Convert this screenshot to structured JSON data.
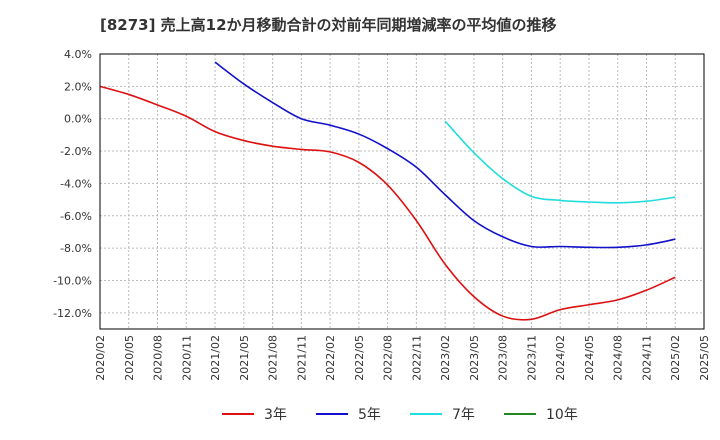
{
  "chart_data": {
    "type": "line",
    "title": "[8273]  売上高12か月移動合計の対前年同期増減率の平均値の推移",
    "xlabel": "",
    "ylabel": "",
    "ylim": [
      -13.0,
      4.0
    ],
    "yticks": [
      4.0,
      2.0,
      0.0,
      -2.0,
      -4.0,
      -6.0,
      -8.0,
      -10.0,
      -12.0
    ],
    "ytick_labels": [
      "4.0%",
      "2.0%",
      "0.0%",
      "-2.0%",
      "-4.0%",
      "-6.0%",
      "-8.0%",
      "-10.0%",
      "-12.0%"
    ],
    "x_categories": [
      "2020/02",
      "2020/05",
      "2020/08",
      "2020/11",
      "2021/02",
      "2021/05",
      "2021/08",
      "2021/11",
      "2022/02",
      "2022/05",
      "2022/08",
      "2022/11",
      "2023/02",
      "2023/05",
      "2023/08",
      "2023/11",
      "2024/02",
      "2024/05",
      "2024/08",
      "2024/11",
      "2025/02",
      "2025/05"
    ],
    "grid": true,
    "legend_position": "bottom",
    "series": [
      {
        "name": "3年",
        "color": "#dd1111",
        "values": [
          2.0,
          1.5,
          0.85,
          0.15,
          -0.8,
          -1.35,
          -1.7,
          -1.9,
          -2.05,
          -2.7,
          -4.1,
          -6.3,
          -9.0,
          -11.0,
          -12.2,
          -12.4,
          -11.8,
          -11.5,
          -11.2,
          -10.6,
          -9.8,
          null
        ]
      },
      {
        "name": "5年",
        "color": "#1111cc",
        "values": [
          null,
          null,
          null,
          null,
          3.5,
          2.15,
          1.0,
          0.0,
          -0.4,
          -0.95,
          -1.85,
          -3.0,
          -4.7,
          -6.3,
          -7.3,
          -7.9,
          -7.9,
          -7.95,
          -7.95,
          -7.8,
          -7.45,
          null
        ]
      },
      {
        "name": "7年",
        "color": "#22dddd",
        "values": [
          null,
          null,
          null,
          null,
          null,
          null,
          null,
          null,
          null,
          null,
          null,
          null,
          -0.15,
          -2.1,
          -3.7,
          -4.8,
          -5.05,
          -5.15,
          -5.2,
          -5.1,
          -4.85,
          null
        ]
      },
      {
        "name": "10年",
        "color": "#228822",
        "values": [
          null,
          null,
          null,
          null,
          null,
          null,
          null,
          null,
          null,
          null,
          null,
          null,
          null,
          null,
          null,
          null,
          null,
          null,
          null,
          null,
          null,
          null
        ]
      }
    ]
  }
}
